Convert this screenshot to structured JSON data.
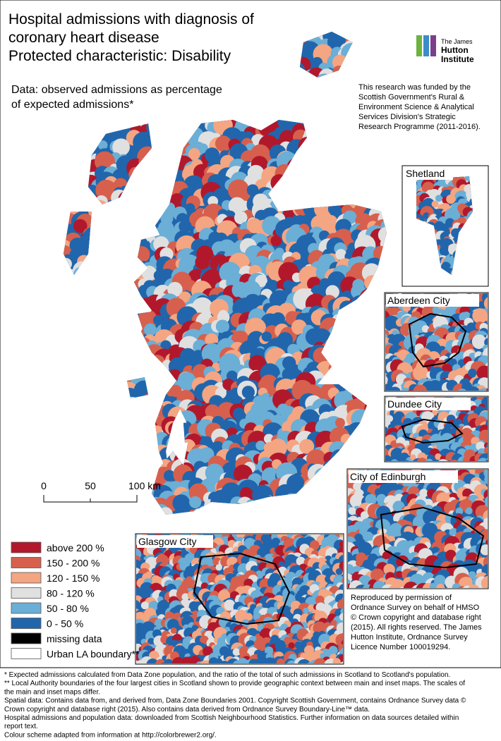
{
  "title": [
    "Hospital admissions with diagnosis of",
    "coronary heart disease",
    "Protected characteristic: Disability"
  ],
  "subtitle": [
    "Data: observed admissions as percentage",
    "of expected admissions*"
  ],
  "logo": [
    "The James",
    "Hutton",
    "Institute"
  ],
  "funding": [
    "This research was funded by the",
    "Scottish Government's Rural &",
    "Environment Science & Analytical",
    "Services Division's Strategic",
    "Research Programme (2011-2016)."
  ],
  "insets": [
    "Shetland",
    "Aberdeen City",
    "Dundee City",
    "City of Edinburgh",
    "Glasgow City"
  ],
  "scale_bar": [
    "0",
    "50",
    "100 km"
  ],
  "legend": [
    {
      "label": "above 200 %",
      "color": "#b2182b"
    },
    {
      "label": "150 - 200 %",
      "color": "#d6604d"
    },
    {
      "label": "120 - 150 %",
      "color": "#f4a582"
    },
    {
      "label": "80 - 120 %",
      "color": "#e0e0e0"
    },
    {
      "label": "50 - 80 %",
      "color": "#6baed6"
    },
    {
      "label": "0 - 50 %",
      "color": "#2166ac"
    },
    {
      "label": "missing data",
      "color": "#000000"
    },
    {
      "label": "Urban LA boundary**",
      "color": "#ffffff"
    }
  ],
  "copyright": [
    "Reproduced by permission of",
    "Ordnance Survey on behalf of HMSO",
    "© Crown copyright and database right",
    "(2015). All rights reserved. The James",
    "Hutton Institute, Ordnance Survey",
    "Licence Number 100019294."
  ],
  "footnotes": [
    "* Expected admissions calculated from Data Zone population, and the ratio of the total of such admissions in Scotland to Scotland's population.",
    "** Local Authority boundaries of the four largest cities in Scotland shown to provide geographic context between main and inset maps. The scales of",
    "the main and inset maps differ.",
    "Spatial data: Contains data from, and derived from, Data Zone Boundaries 2001. Copyright Scottish Government, contains Ordnance Survey data ©",
    "Crown copyright and database right (2015). Also contains data derived from Ordnance Survey Boundary-Line™ data.",
    "Hospital admissions and population data: downloaded from Scottish Neighbourhood Statistics. Further information on data sources detailed within",
    "report text.",
    "Colour scheme adapted from information at http://colorbrewer2.org/."
  ]
}
